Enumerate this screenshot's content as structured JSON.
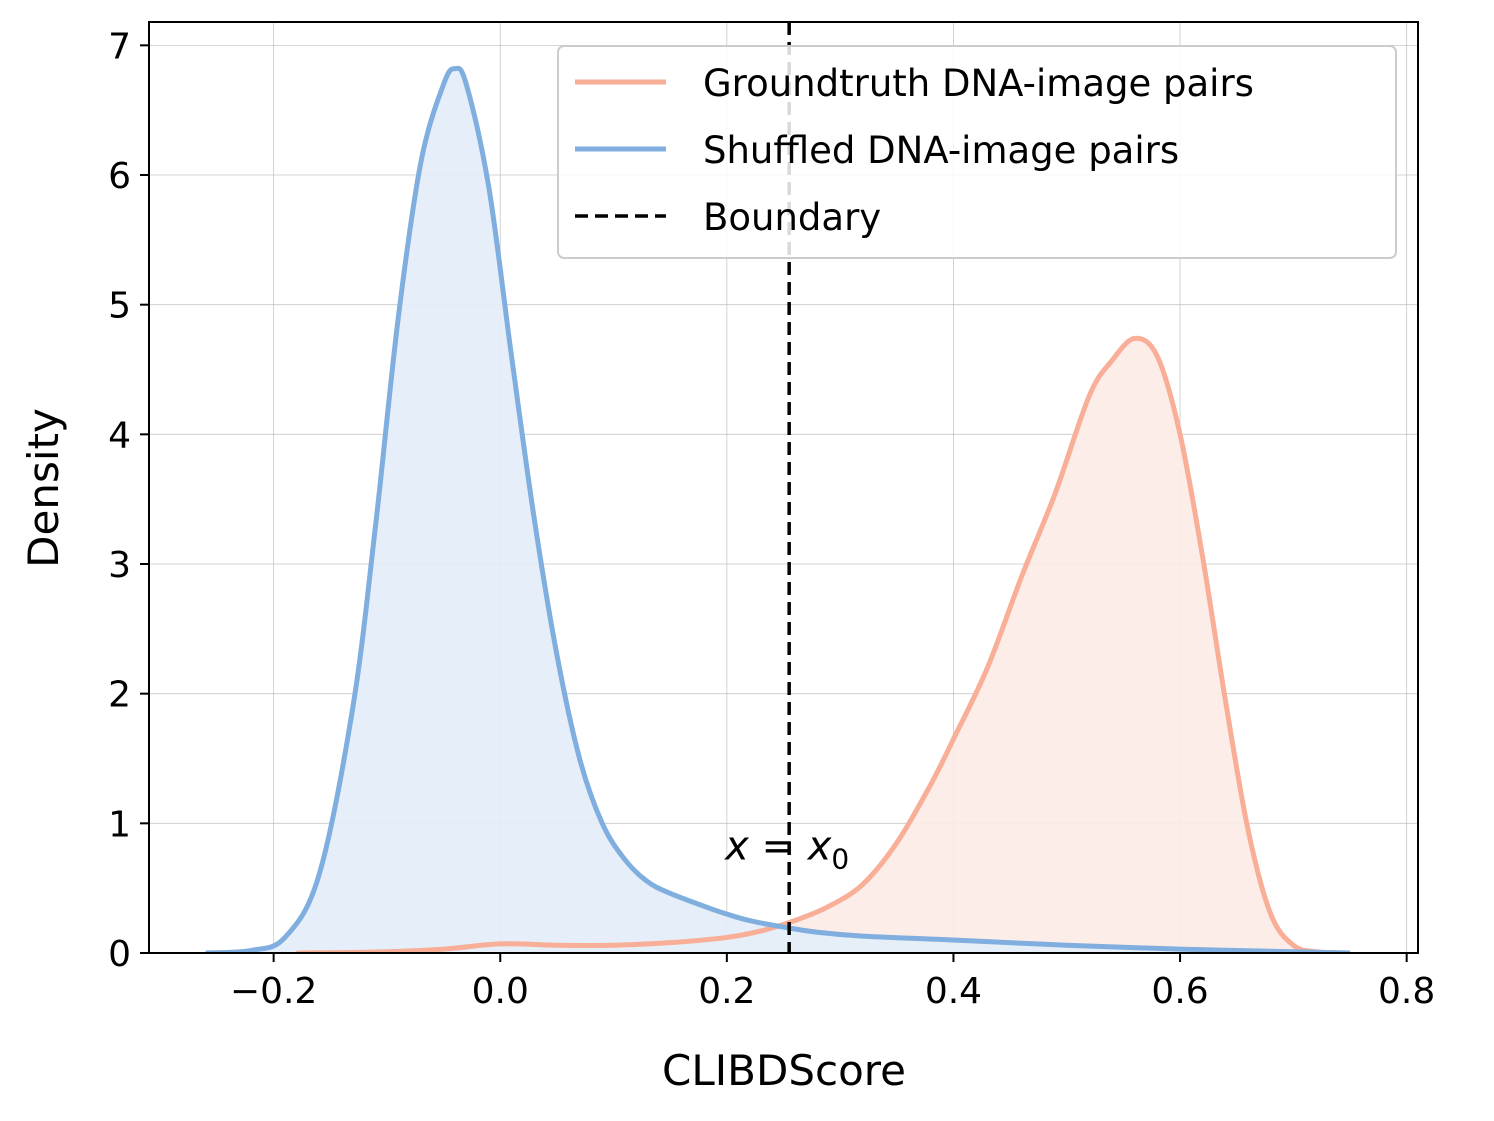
{
  "chart_data": {
    "type": "area",
    "xlabel": "CLIBDScore",
    "ylabel": "Density",
    "xlim": [
      -0.31,
      0.81
    ],
    "ylim": [
      0,
      7.18
    ],
    "xticks": [
      -0.2,
      0.0,
      0.2,
      0.4,
      0.6,
      0.8
    ],
    "xtick_labels": [
      "−0.2",
      "0.0",
      "0.2",
      "0.4",
      "0.6",
      "0.8"
    ],
    "yticks": [
      0,
      1,
      2,
      3,
      4,
      5,
      6,
      7
    ],
    "ytick_labels": [
      "0",
      "1",
      "2",
      "3",
      "4",
      "5",
      "6",
      "7"
    ],
    "grid": true,
    "legend_position": "top-right",
    "boundary": {
      "label": "Boundary",
      "x": 0.255,
      "annotation_var": "x",
      "annotation_eq": " = ",
      "annotation_sub": "0",
      "color": "#000000"
    },
    "series": [
      {
        "name": "Groundtruth DNA-image pairs",
        "color": "#F8AE97",
        "fill": "#FDEBE5",
        "x": [
          -0.18,
          -0.1,
          -0.05,
          0.0,
          0.05,
          0.1,
          0.15,
          0.2,
          0.23,
          0.26,
          0.29,
          0.32,
          0.35,
          0.38,
          0.4,
          0.43,
          0.46,
          0.49,
          0.52,
          0.54,
          0.56,
          0.58,
          0.6,
          0.62,
          0.64,
          0.66,
          0.68,
          0.7,
          0.72,
          0.75
        ],
        "y": [
          0.0,
          0.01,
          0.03,
          0.07,
          0.06,
          0.06,
          0.08,
          0.12,
          0.17,
          0.25,
          0.36,
          0.53,
          0.85,
          1.3,
          1.65,
          2.2,
          2.9,
          3.55,
          4.3,
          4.57,
          4.74,
          4.6,
          4.0,
          3.05,
          1.95,
          0.95,
          0.3,
          0.06,
          0.01,
          0.0
        ]
      },
      {
        "name": "Shuffled DNA-image pairs",
        "color": "#7FAEDF",
        "fill": "#E3EDF8",
        "x": [
          -0.26,
          -0.22,
          -0.19,
          -0.16,
          -0.13,
          -0.11,
          -0.09,
          -0.07,
          -0.05,
          -0.04,
          -0.03,
          -0.01,
          0.01,
          0.03,
          0.05,
          0.07,
          0.09,
          0.11,
          0.13,
          0.15,
          0.18,
          0.2,
          0.22,
          0.25,
          0.28,
          0.32,
          0.4,
          0.5,
          0.6,
          0.7,
          0.75
        ],
        "y": [
          0.0,
          0.02,
          0.12,
          0.6,
          1.9,
          3.3,
          4.9,
          6.1,
          6.7,
          6.82,
          6.7,
          5.9,
          4.6,
          3.35,
          2.3,
          1.5,
          1.0,
          0.72,
          0.55,
          0.46,
          0.36,
          0.3,
          0.25,
          0.2,
          0.16,
          0.13,
          0.1,
          0.06,
          0.03,
          0.01,
          0.0
        ]
      }
    ]
  }
}
